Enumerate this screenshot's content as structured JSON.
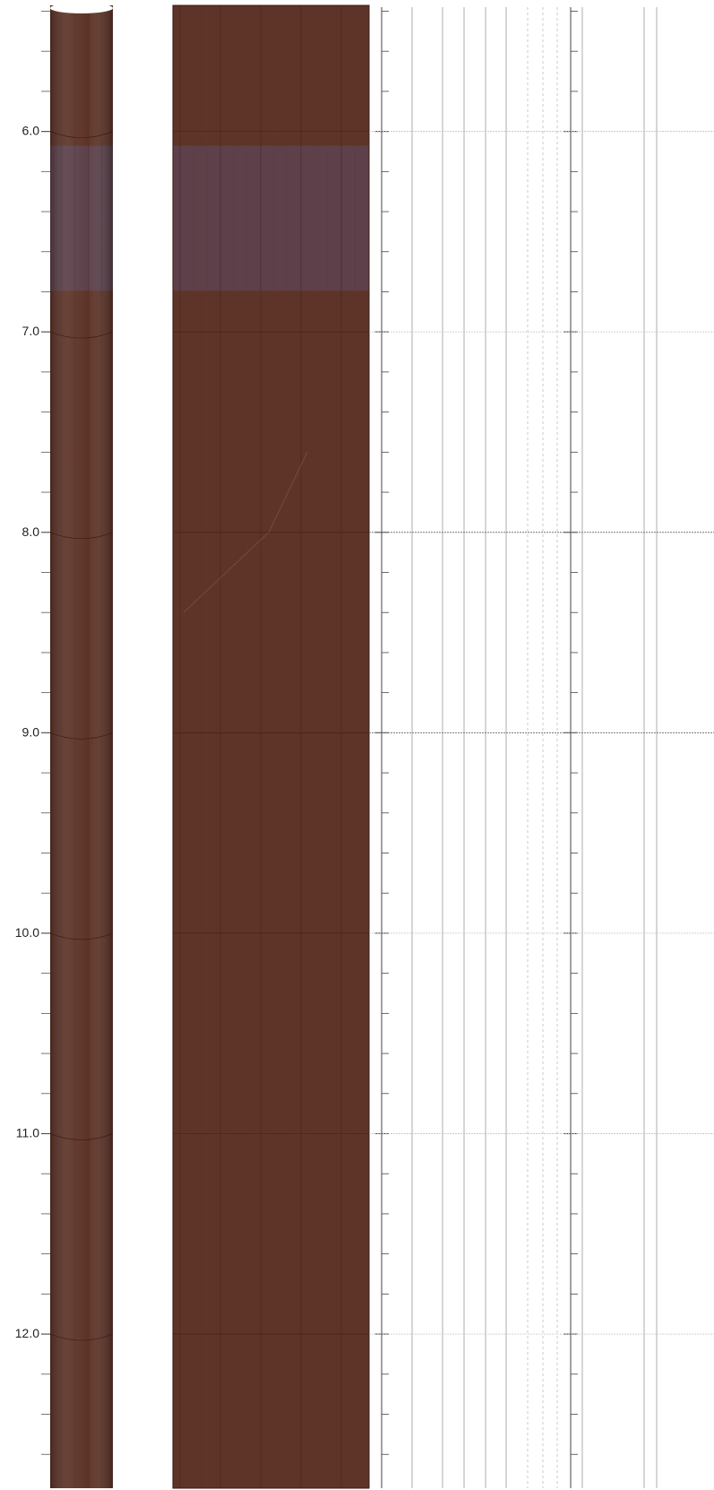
{
  "depth_scale": {
    "unit": "",
    "top_depth": 5.38,
    "bottom_depth": 12.76,
    "labeled_ticks": [
      {
        "depth": 6.0,
        "label": "6.0"
      },
      {
        "depth": 7.0,
        "label": "7.0"
      },
      {
        "depth": 8.0,
        "label": "8.0"
      },
      {
        "depth": 9.0,
        "label": "9.0"
      },
      {
        "depth": 10.0,
        "label": "10.0"
      },
      {
        "depth": 11.0,
        "label": "11.0"
      },
      {
        "depth": 12.0,
        "label": "12.0"
      }
    ],
    "minor_tick_interval": 0.2
  },
  "core_photos": {
    "base_color": "#5e3428",
    "discolored_zone": {
      "from_depth": 6.25,
      "to_depth": 6.75,
      "color": "#5c4658"
    }
  },
  "log_tracks": {
    "line_color": "#9a9a9a",
    "tick_color": "#444444"
  }
}
